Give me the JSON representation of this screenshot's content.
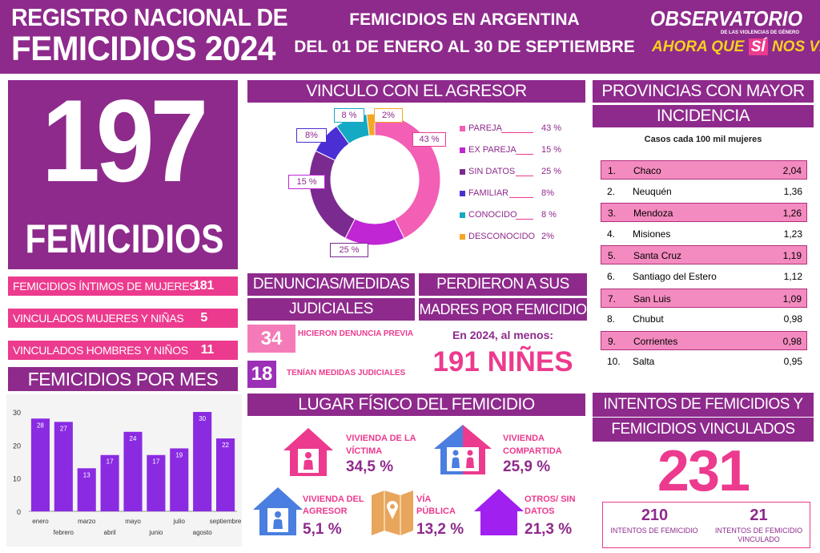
{
  "header": {
    "title_line1": "REGISTRO NACIONAL DE",
    "title_line2": "FEMICIDIOS 2024",
    "subtitle_line1": "FEMICIDIOS EN ARGENTINA",
    "subtitle_line2": "DEL 01 DE ENERO AL 30 DE SEPTIEMBRE",
    "logo_main": "OBSERVATORIO",
    "logo_small": "DE LAS VIOLENCIAS DE GÉNERO",
    "logo_sub_a": "AHORA QUE",
    "logo_sub_b": "SÍ",
    "logo_sub_c": "NOS VEN"
  },
  "total": {
    "number": "197",
    "label": "FEMICIDIOS"
  },
  "breakdown": [
    {
      "label": "FEMICIDIOS ÍNTIMOS DE MUJERES",
      "value": "181"
    },
    {
      "label": "VINCULADOS MUJERES Y NIÑAS",
      "value": "5"
    },
    {
      "label": "VINCULADOS HOMBRES Y NIÑOS",
      "value": "11"
    }
  ],
  "by_month": {
    "title": "FEMICIDIOS POR MES",
    "chart_data": {
      "type": "bar",
      "categories": [
        "enero",
        "febrero",
        "marzo",
        "abril",
        "mayo",
        "junio",
        "julio",
        "agosto",
        "septiembre"
      ],
      "values": [
        28,
        27,
        13,
        17,
        24,
        17,
        19,
        30,
        22
      ],
      "yticks": [
        "0",
        "10",
        "20",
        "30"
      ],
      "ylim": [
        0,
        30
      ],
      "color": "#8a2be2"
    }
  },
  "vinculo": {
    "title": "VINCULO CON EL AGRESOR",
    "chart_data": {
      "type": "pie",
      "categories": [
        "PAREJA",
        "EX PAREJA",
        "SIN DATOS",
        "FAMILIAR",
        "CONOCIDO",
        "DESCONOCIDO"
      ],
      "values": [
        43,
        15,
        25,
        8,
        8,
        2
      ],
      "value_labels": [
        "43 %",
        "15 %",
        "25 %",
        "8%",
        "8 %",
        "2%"
      ],
      "legend_values": [
        "43 %",
        "15 %",
        "25 %",
        "8%",
        "8 %",
        "2%"
      ],
      "colors": [
        "#f25fb5",
        "#c026d3",
        "#7b2a8f",
        "#4b2fd4",
        "#14a9c4",
        "#f5a623"
      ]
    }
  },
  "denuncias": {
    "title1": "DENUNCIAS/MEDIDAS",
    "title2": "JUDICIALES",
    "items": [
      {
        "value": "34",
        "label": "HICIERON DENUNCIA PREVIA"
      },
      {
        "value": "18",
        "label": "TENÍAN MEDIDAS JUDICIALES"
      }
    ]
  },
  "madres": {
    "title1": "PERDIERON A SUS",
    "title2": "MADRES POR FEMICIDIO",
    "intro": "En 2024, al menos:",
    "value": "191 NIÑES"
  },
  "provincias": {
    "title1": "PROVINCIAS CON MAYOR",
    "title2": "INCIDENCIA",
    "subtitle": "Casos cada 100 mil mujeres",
    "rows": [
      {
        "rank": "1.",
        "name": "Chaco",
        "value": "2,04"
      },
      {
        "rank": "2.",
        "name": "Neuquén",
        "value": "1,36"
      },
      {
        "rank": "3.",
        "name": "Mendoza",
        "value": "1,26"
      },
      {
        "rank": "4.",
        "name": "Misiones",
        "value": "1,23"
      },
      {
        "rank": "5.",
        "name": "Santa Cruz",
        "value": "1,19"
      },
      {
        "rank": "6.",
        "name": "Santiago del Estero",
        "value": "1,12"
      },
      {
        "rank": "7.",
        "name": "San Luis",
        "value": "1,09"
      },
      {
        "rank": "8.",
        "name": "Chubut",
        "value": "0,98"
      },
      {
        "rank": "9.",
        "name": "Corrientes",
        "value": "0,98"
      },
      {
        "rank": "10.",
        "name": "Salta",
        "value": "0,95"
      }
    ]
  },
  "lugar": {
    "title": "LUGAR FÍSICO DEL FEMICIDIO",
    "items": [
      {
        "line1": "VIVIENDA DE LA",
        "line2": "VÍCTIMA",
        "value": "34,5 %",
        "icon": "house-person-icon",
        "color": "#ec3a8e"
      },
      {
        "line1": "VIVIENDA",
        "line2": "COMPARTIDA",
        "value": "25,9 %",
        "icon": "house-couple-icon",
        "color": "#ec3a8e"
      },
      {
        "line1": "VIVIENDA DEL",
        "line2": "AGRESOR",
        "value": "5,1 %",
        "icon": "house-person-icon",
        "color": "#4a7ee0"
      },
      {
        "line1": "VÍA",
        "line2": "PÚBLICA",
        "value": "13,2 %",
        "icon": "map-icon",
        "color": "#e8a55c"
      },
      {
        "line1": "OTROS/ SIN",
        "line2": "DATOS",
        "value": "21,3 %",
        "icon": "house-icon",
        "color": "#a020f0"
      }
    ]
  },
  "intentos": {
    "title1": "INTENTOS DE FEMICIDIOS Y",
    "title2": "FEMICIDIOS VINCULADOS",
    "total": "231",
    "left_value": "210",
    "left_label": "INTENTOS DE FEMICIDIO",
    "right_value": "21",
    "right_label1": "INTENTOS DE FEMICIDIO",
    "right_label2": "VINCULADO"
  }
}
